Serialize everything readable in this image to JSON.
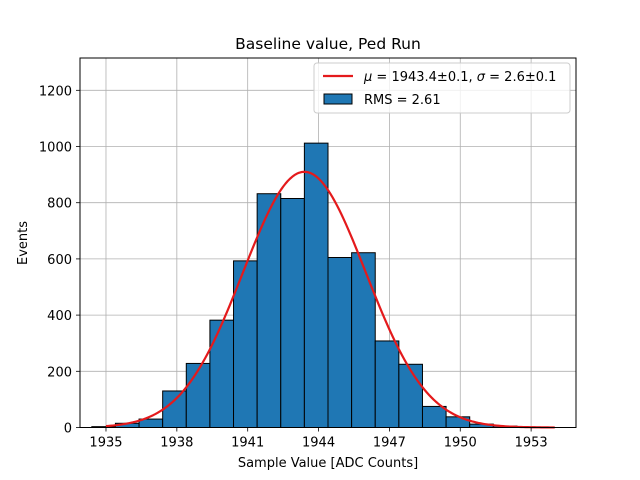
{
  "chart_data": {
    "type": "bar",
    "title": "Baseline value, Ped Run",
    "xlabel": "Sample Value [ADC Counts]",
    "ylabel": "Events",
    "xlim": [
      1933.9,
      1954.9
    ],
    "ylim": [
      0,
      1315
    ],
    "xticks": [
      1935,
      1938,
      1941,
      1944,
      1947,
      1950,
      1953
    ],
    "yticks": [
      0,
      200,
      400,
      600,
      800,
      1000,
      1200
    ],
    "grid": true,
    "legend_position": "upper right",
    "histogram": {
      "name": "RMS = 2.61",
      "color": "#1f77b4",
      "edgecolor": "#000000",
      "bin_edges": [
        1934.4,
        1935.4,
        1936.4,
        1937.4,
        1938.4,
        1939.4,
        1940.4,
        1941.4,
        1942.4,
        1943.4,
        1944.4,
        1945.4,
        1946.4,
        1947.4,
        1948.4,
        1949.4,
        1950.4,
        1951.4,
        1952.4,
        1953.4
      ],
      "counts": [
        3,
        15,
        30,
        130,
        228,
        382,
        593,
        832,
        815,
        1012,
        605,
        622,
        308,
        225,
        75,
        38,
        12,
        5,
        2
      ]
    },
    "fit": {
      "name": "$\\mu = 1943.4\\pm0.1$, $\\sigma = 2.6\\pm0.1$",
      "label_parts": {
        "mu_symbol": "μ",
        "mu_text": " = 1943.4±0.1, ",
        "sigma_symbol": "σ",
        "sigma_text": " = 2.6±0.1"
      },
      "color": "#e41a1c",
      "type": "gaussian",
      "amplitude": 910,
      "mean": 1943.4,
      "sigma": 2.6,
      "x_range": [
        1935,
        1954
      ]
    }
  }
}
